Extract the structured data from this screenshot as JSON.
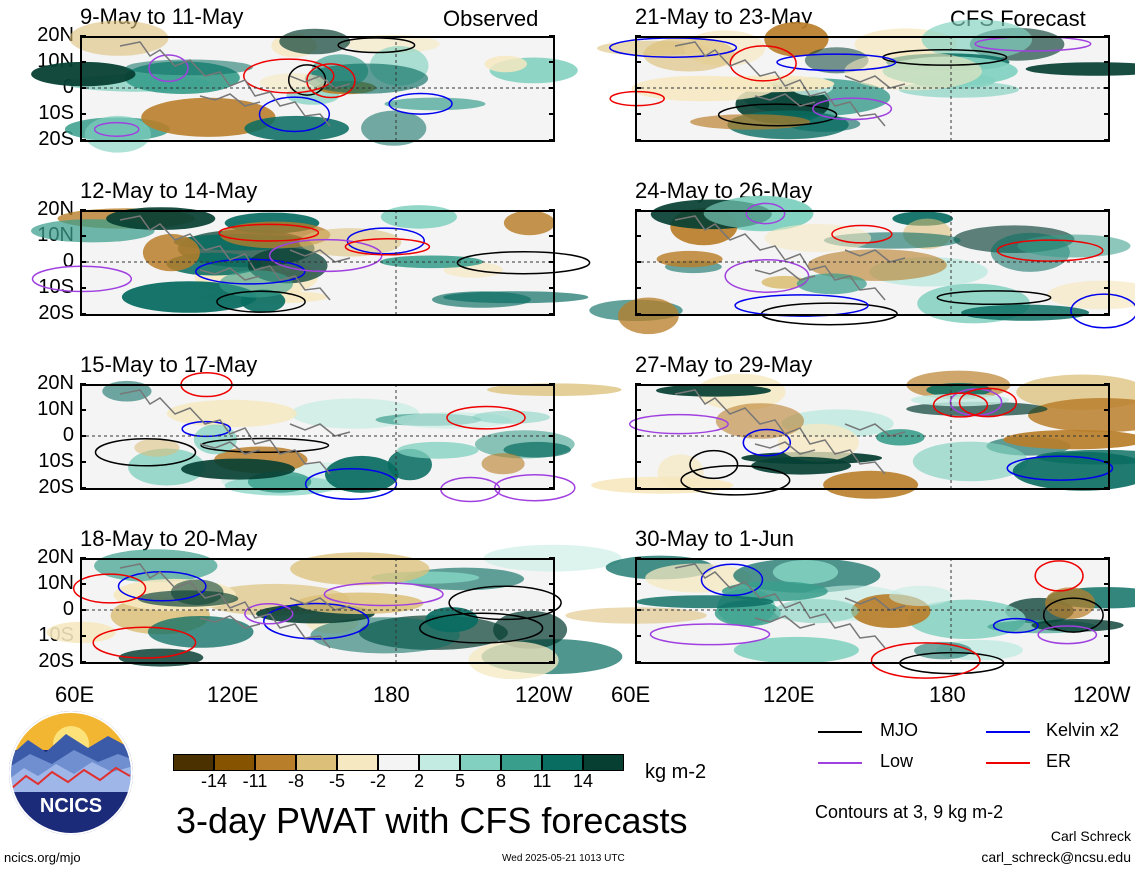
{
  "chart_data": {
    "type": "heatmap",
    "title": "3-day PWAT with CFS forecasts",
    "colorbar": {
      "unit": "kg m-2",
      "ticks": [
        "-14",
        "-11",
        "-8",
        "-5",
        "-2",
        "2",
        "5",
        "8",
        "11",
        "14"
      ],
      "colors": [
        "#4b3100",
        "#865400",
        "#b97e2a",
        "#dcc07a",
        "#f6e8c0",
        "#f4f4f4",
        "#c4ebe2",
        "#82d1c0",
        "#3a9e8c",
        "#0a6d62",
        "#073f33"
      ]
    },
    "latitude_ticks": [
      "20N",
      "10N",
      "0",
      "10S",
      "20S"
    ],
    "longitude_ticks": [
      "60E",
      "120E",
      "180",
      "120W"
    ],
    "observed_label": "Observed",
    "forecast_label": "CFS Forecast",
    "panels": [
      {
        "period": "9-May to 11-May",
        "column": "left"
      },
      {
        "period": "12-May to 14-May",
        "column": "left"
      },
      {
        "period": "15-May to 17-May",
        "column": "left"
      },
      {
        "period": "18-May to 20-May",
        "column": "left"
      },
      {
        "period": "21-May to 23-May",
        "column": "right"
      },
      {
        "period": "24-May to 26-May",
        "column": "right"
      },
      {
        "period": "27-May to 29-May",
        "column": "right"
      },
      {
        "period": "30-May to 1-Jun",
        "column": "right"
      }
    ],
    "legend": [
      {
        "label": "MJO",
        "color": "#000000"
      },
      {
        "label": "Kelvin x2",
        "color": "#0000ee"
      },
      {
        "label": "Low",
        "color": "#a040e0"
      },
      {
        "label": "ER",
        "color": "#ee0000"
      }
    ],
    "contour_note": "Contours at 3, 9 kg m-2"
  },
  "footer": {
    "logo_text": "NCICS",
    "site": "ncics.org/mjo",
    "timestamp": "Wed 2025-05-21 1013 UTC",
    "author": "Carl Schreck",
    "email": "carl_schreck@ncsu.edu"
  }
}
